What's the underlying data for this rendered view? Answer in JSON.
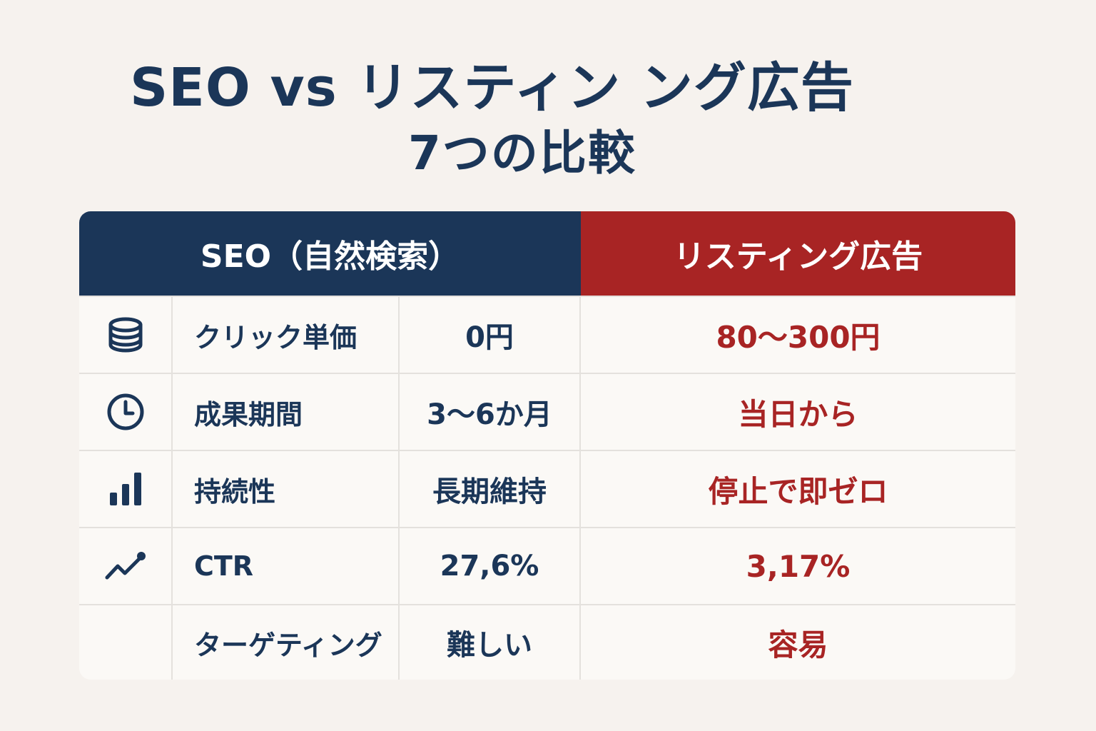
{
  "title": {
    "line1": "SEO vs リスティン ング広告",
    "line2": "7つの比較"
  },
  "table": {
    "headers": {
      "seo": "SEO（自然検索）",
      "ads": "リスティング広告"
    },
    "rows": [
      {
        "icon": "coins-icon",
        "label": "クリック単価",
        "seo": "0円",
        "ads": "80～300円"
      },
      {
        "icon": "clock-icon",
        "label": "成果期間",
        "seo": "3～6か月",
        "ads": "当日から"
      },
      {
        "icon": "bar-chart-icon",
        "label": "持続性",
        "seo": "長期維持",
        "ads": "停止で即ゼロ"
      },
      {
        "icon": "trend-line-icon",
        "label": "CTR",
        "seo": "27,6%",
        "ads": "3,17%"
      },
      {
        "icon": "",
        "label": "ターゲティング",
        "seo": "難しい",
        "ads": "容易"
      }
    ]
  },
  "colors": {
    "navy": "#1b3658",
    "red": "#a82424",
    "background": "#f6f2ee"
  }
}
